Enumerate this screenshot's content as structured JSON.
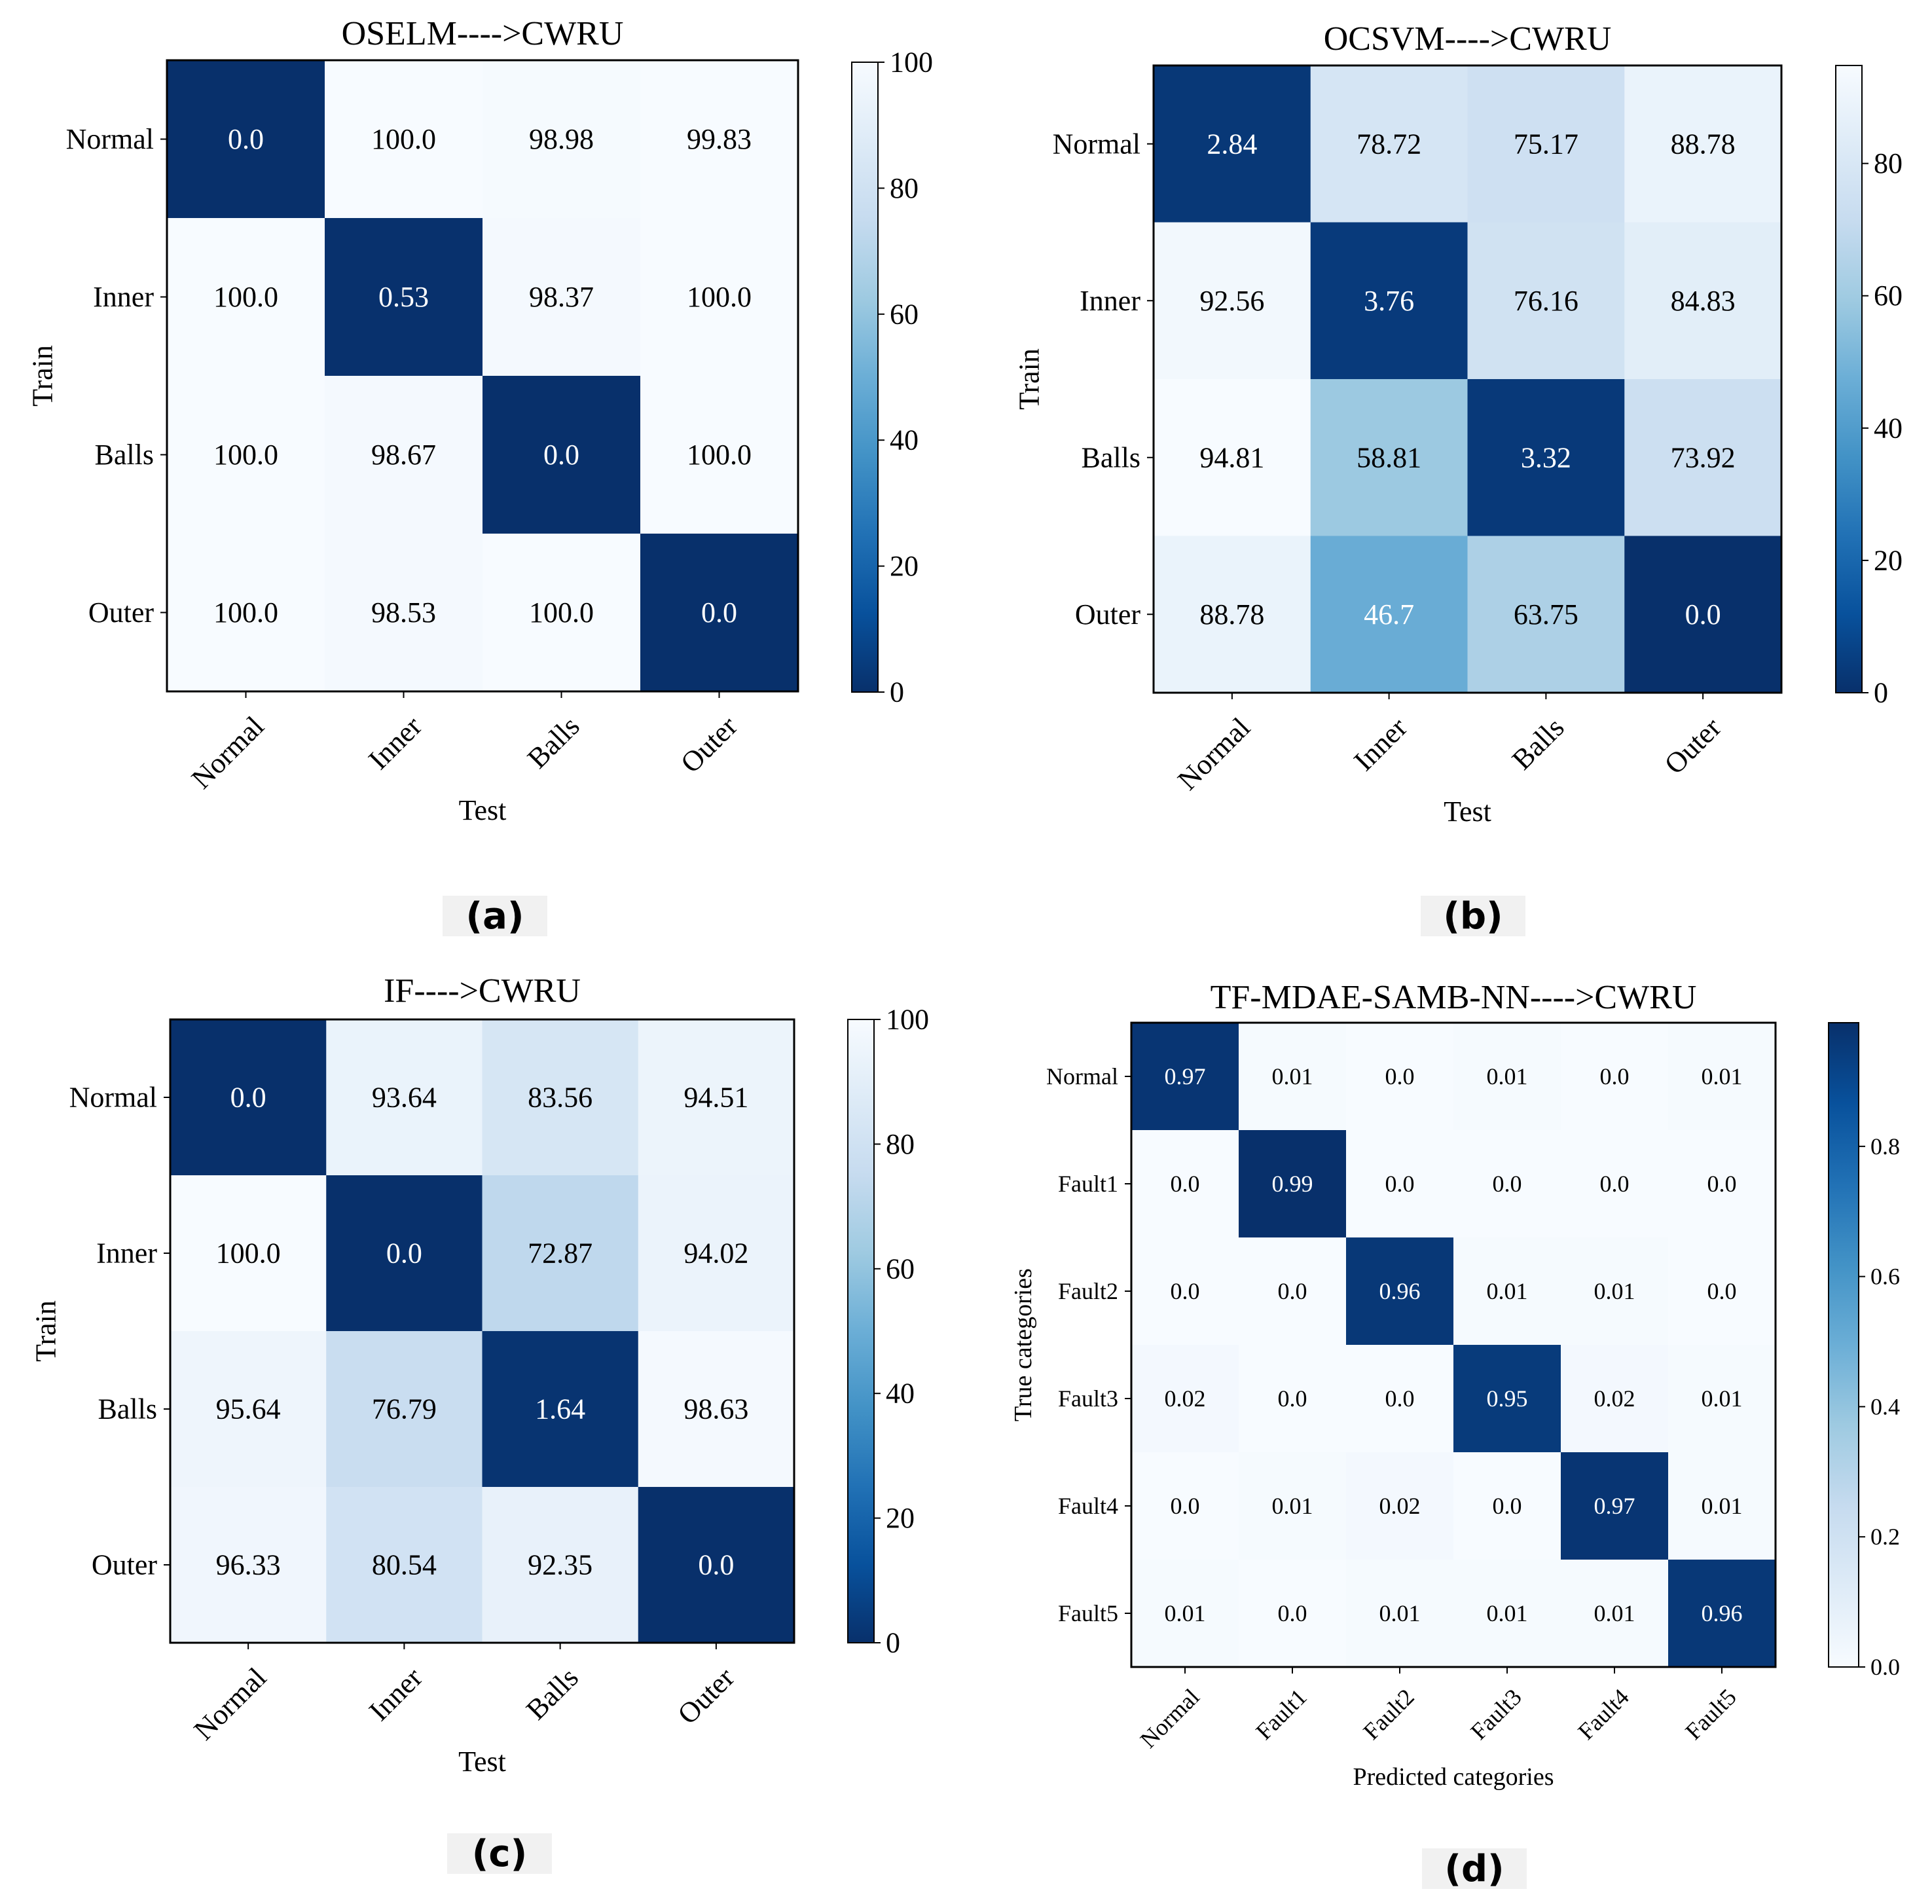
{
  "chart_data": [
    {
      "type": "heatmap",
      "title": "OSELM---->CWRU",
      "panel_label": "(a)",
      "xlabel": "Test",
      "ylabel": "Train",
      "rows": [
        "Normal",
        "Inner",
        "Balls",
        "Outer"
      ],
      "cols": [
        "Normal",
        "Inner",
        "Balls",
        "Outer"
      ],
      "values": [
        [
          "0.0",
          "100.0",
          "98.98",
          "99.83"
        ],
        [
          "100.0",
          "0.53",
          "98.37",
          "100.0"
        ],
        [
          "100.0",
          "98.67",
          "0.0",
          "100.0"
        ],
        [
          "100.0",
          "98.53",
          "100.0",
          "0.0"
        ]
      ],
      "colormap": "Blues_r",
      "vmin": 0,
      "vmax": 100,
      "colorbar_ticks": [
        "0",
        "20",
        "40",
        "60",
        "80",
        "100"
      ]
    },
    {
      "type": "heatmap",
      "title": "OCSVM---->CWRU",
      "panel_label": "(b)",
      "xlabel": "Test",
      "ylabel": "Train",
      "rows": [
        "Normal",
        "Inner",
        "Balls",
        "Outer"
      ],
      "cols": [
        "Normal",
        "Inner",
        "Balls",
        "Outer"
      ],
      "values": [
        [
          "2.84",
          "78.72",
          "75.17",
          "88.78"
        ],
        [
          "92.56",
          "3.76",
          "76.16",
          "84.83"
        ],
        [
          "94.81",
          "58.81",
          "3.32",
          "73.92"
        ],
        [
          "88.78",
          "46.7",
          "63.75",
          "0.0"
        ]
      ],
      "colormap": "Blues_r",
      "vmin": 0,
      "vmax": 94.81,
      "colorbar_ticks": [
        "0",
        "20",
        "40",
        "60",
        "80"
      ]
    },
    {
      "type": "heatmap",
      "title": "IF---->CWRU",
      "panel_label": "(c)",
      "xlabel": "Test",
      "ylabel": "Train",
      "rows": [
        "Normal",
        "Inner",
        "Balls",
        "Outer"
      ],
      "cols": [
        "Normal",
        "Inner",
        "Balls",
        "Outer"
      ],
      "values": [
        [
          "0.0",
          "93.64",
          "83.56",
          "94.51"
        ],
        [
          "100.0",
          "0.0",
          "72.87",
          "94.02"
        ],
        [
          "95.64",
          "76.79",
          "1.64",
          "98.63"
        ],
        [
          "96.33",
          "80.54",
          "92.35",
          "0.0"
        ]
      ],
      "colormap": "Blues_r",
      "vmin": 0,
      "vmax": 100,
      "colorbar_ticks": [
        "0",
        "20",
        "40",
        "60",
        "80",
        "100"
      ]
    },
    {
      "type": "heatmap",
      "title": "TF-MDAE-SAMB-NN---->CWRU",
      "panel_label": "(d)",
      "xlabel": "Predicted categories",
      "ylabel": "True categories",
      "rows": [
        "Normal",
        "Fault1",
        "Fault2",
        "Fault3",
        "Fault4",
        "Fault5"
      ],
      "cols": [
        "Normal",
        "Fault1",
        "Fault2",
        "Fault3",
        "Fault4",
        "Fault5"
      ],
      "values": [
        [
          "0.97",
          "0.01",
          "0.0",
          "0.01",
          "0.0",
          "0.01"
        ],
        [
          "0.0",
          "0.99",
          "0.0",
          "0.0",
          "0.0",
          "0.0"
        ],
        [
          "0.0",
          "0.0",
          "0.96",
          "0.01",
          "0.01",
          "0.0"
        ],
        [
          "0.02",
          "0.0",
          "0.0",
          "0.95",
          "0.02",
          "0.01"
        ],
        [
          "0.0",
          "0.01",
          "0.02",
          "0.0",
          "0.97",
          "0.01"
        ],
        [
          "0.01",
          "0.0",
          "0.01",
          "0.01",
          "0.01",
          "0.96"
        ]
      ],
      "colormap": "Blues",
      "vmin": 0,
      "vmax": 0.99,
      "colorbar_ticks": [
        "0.0",
        "0.2",
        "0.4",
        "0.6",
        "0.8"
      ]
    }
  ]
}
